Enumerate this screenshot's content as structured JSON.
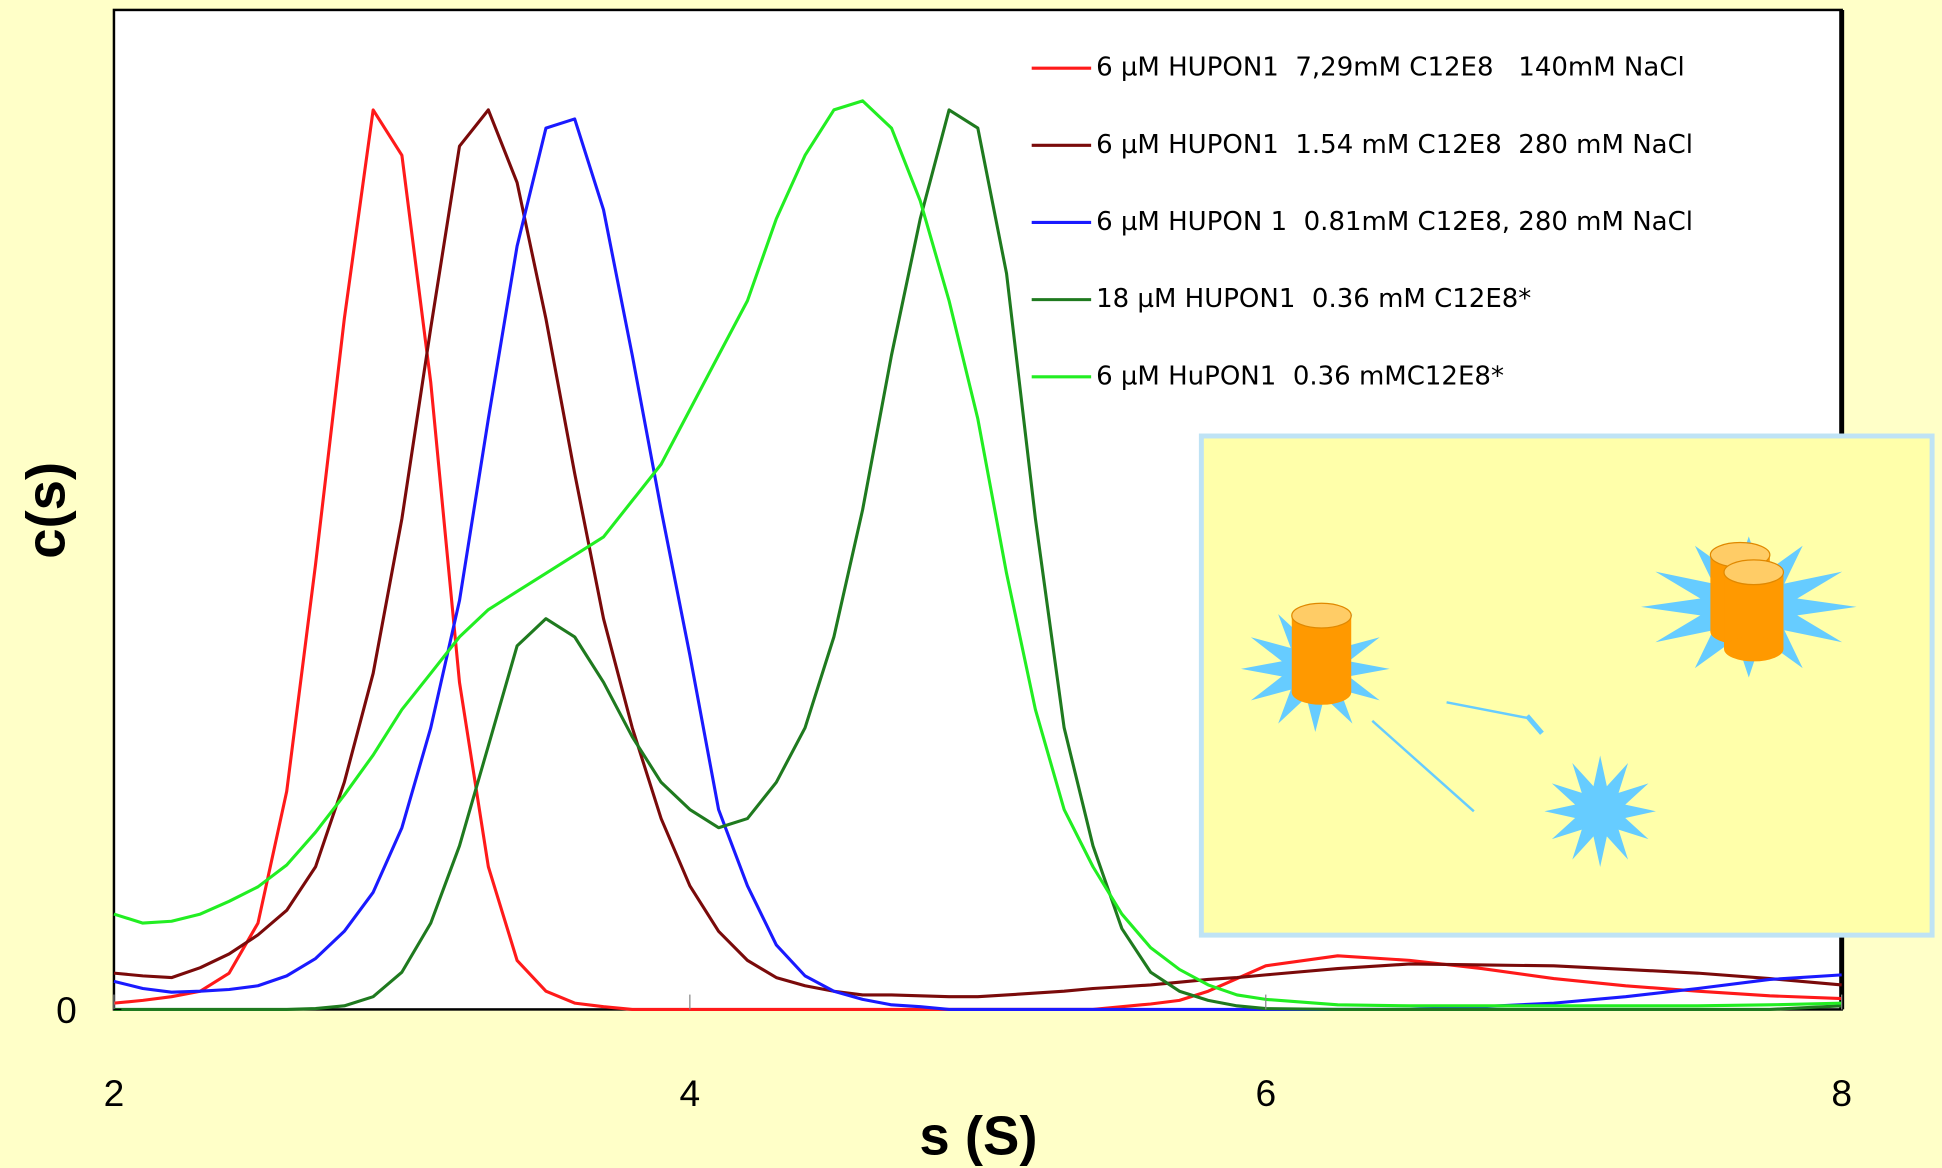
{
  "chart_data": {
    "type": "line",
    "xlabel": "s (S)",
    "ylabel": "c(s)",
    "xlim": [
      2,
      8
    ],
    "xticks": [
      2,
      4,
      6,
      8
    ],
    "ylim": [
      0,
      1.1
    ],
    "yticks": [
      0
    ],
    "x": [
      2.0,
      2.1,
      2.2,
      2.3,
      2.4,
      2.5,
      2.6,
      2.7,
      2.8,
      2.9,
      3.0,
      3.1,
      3.2,
      3.3,
      3.4,
      3.5,
      3.6,
      3.7,
      3.8,
      3.9,
      4.0,
      4.1,
      4.2,
      4.3,
      4.4,
      4.5,
      4.6,
      4.7,
      4.8,
      4.9,
      5.0,
      5.1,
      5.2,
      5.3,
      5.4,
      5.5,
      5.6,
      5.7,
      5.8,
      5.9,
      6.0,
      6.25,
      6.5,
      6.75,
      7.0,
      7.25,
      7.5,
      7.75,
      8.0
    ],
    "series": [
      {
        "name": "6 µM HUPON1  7,29mM C12E8   140mM NaCl",
        "color": "#ff1a1a",
        "values": [
          0.007,
          0.01,
          0.014,
          0.02,
          0.04,
          0.095,
          0.24,
          0.49,
          0.76,
          0.99,
          0.94,
          0.69,
          0.36,
          0.157,
          0.054,
          0.02,
          0.007,
          0.003,
          0,
          0,
          0,
          0,
          0,
          0,
          0,
          0,
          0,
          0,
          0,
          0,
          0,
          0,
          0,
          0,
          0,
          0.003,
          0.006,
          0.01,
          0.02,
          0.034,
          0.048,
          0.059,
          0.054,
          0.045,
          0.034,
          0.026,
          0.02,
          0.015,
          0.012
        ]
      },
      {
        "name": "6 µM HUPON1  1.54 mM C12E8  280 mM NaCl",
        "color": "#7a0a0a",
        "values": [
          0.04,
          0.037,
          0.035,
          0.046,
          0.061,
          0.082,
          0.109,
          0.157,
          0.25,
          0.37,
          0.54,
          0.75,
          0.95,
          0.99,
          0.91,
          0.76,
          0.59,
          0.43,
          0.31,
          0.21,
          0.136,
          0.086,
          0.054,
          0.035,
          0.026,
          0.02,
          0.016,
          0.016,
          0.015,
          0.014,
          0.014,
          0.016,
          0.018,
          0.02,
          0.023,
          0.025,
          0.027,
          0.03,
          0.033,
          0.035,
          0.038,
          0.045,
          0.05,
          0.049,
          0.048,
          0.044,
          0.04,
          0.034,
          0.027
        ]
      },
      {
        "name": "6 µM HUPON 1  0.81mM C12E8, 280 mM NaCl",
        "color": "#1a1aff",
        "values": [
          0.031,
          0.023,
          0.019,
          0.02,
          0.022,
          0.026,
          0.037,
          0.056,
          0.086,
          0.129,
          0.2,
          0.31,
          0.45,
          0.65,
          0.84,
          0.97,
          0.98,
          0.88,
          0.72,
          0.55,
          0.39,
          0.22,
          0.136,
          0.071,
          0.037,
          0.02,
          0.011,
          0.005,
          0.003,
          0,
          0,
          0,
          0,
          0,
          0,
          0,
          0,
          0,
          0,
          0,
          0,
          0,
          0,
          0.003,
          0.007,
          0.014,
          0.023,
          0.033,
          0.038
        ]
      },
      {
        "name": "18 µM HUPON1  0.36 mM C12E8*",
        "color": "#1f7a1f",
        "values": [
          0,
          0,
          0,
          0,
          0,
          0,
          0,
          0.001,
          0.004,
          0.014,
          0.041,
          0.095,
          0.18,
          0.29,
          0.4,
          0.43,
          0.41,
          0.36,
          0.3,
          0.25,
          0.22,
          0.2,
          0.21,
          0.25,
          0.31,
          0.41,
          0.55,
          0.72,
          0.87,
          0.99,
          0.97,
          0.81,
          0.54,
          0.31,
          0.18,
          0.089,
          0.041,
          0.02,
          0.01,
          0.004,
          0.001,
          0,
          0,
          0,
          0,
          0,
          0,
          0,
          0.004
        ]
      },
      {
        "name": "6 µM HuPON1  0.36 mMC12E8*",
        "color": "#22ee22",
        "values": [
          0.105,
          0.095,
          0.097,
          0.105,
          0.119,
          0.135,
          0.159,
          0.195,
          0.236,
          0.28,
          0.33,
          0.37,
          0.41,
          0.44,
          0.46,
          0.48,
          0.5,
          0.52,
          0.56,
          0.6,
          0.66,
          0.72,
          0.78,
          0.87,
          0.94,
          0.99,
          1.0,
          0.97,
          0.89,
          0.78,
          0.65,
          0.48,
          0.33,
          0.22,
          0.157,
          0.105,
          0.068,
          0.044,
          0.027,
          0.016,
          0.011,
          0.005,
          0.004,
          0.004,
          0.004,
          0.004,
          0.004,
          0.005,
          0.007
        ]
      }
    ]
  }
}
